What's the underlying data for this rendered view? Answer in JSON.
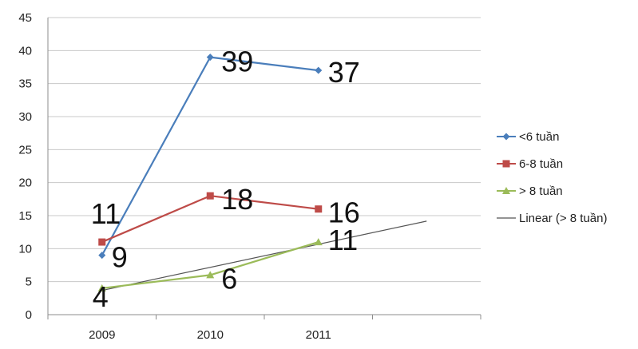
{
  "chart_data": {
    "type": "line",
    "title": "",
    "xlabel": "",
    "ylabel": "",
    "categories": [
      "2009",
      "2010",
      "2011"
    ],
    "ylim": [
      0,
      45
    ],
    "yticks": [
      0,
      5,
      10,
      15,
      20,
      25,
      30,
      35,
      40,
      45
    ],
    "grid": true,
    "legend_position": "right",
    "series": [
      {
        "name": "<6 tuần",
        "values": [
          9,
          39,
          37
        ],
        "labels": [
          "9",
          "39",
          "37"
        ],
        "color": "#4a7ebb",
        "marker": "diamond"
      },
      {
        "name": "6-8 tuần",
        "values": [
          11,
          18,
          16
        ],
        "labels": [
          "11",
          "18",
          "16"
        ],
        "color": "#be4b48",
        "marker": "square"
      },
      {
        "name": "> 8 tuần",
        "values": [
          4,
          6,
          11
        ],
        "labels": [
          "4",
          "6",
          "11"
        ],
        "color": "#9bbb59",
        "marker": "triangle"
      }
    ],
    "trendline": {
      "name": "Linear (> 8 tuần)",
      "color": "#555555",
      "from": [
        1,
        3.67
      ],
      "to": [
        4,
        14.17
      ]
    }
  }
}
